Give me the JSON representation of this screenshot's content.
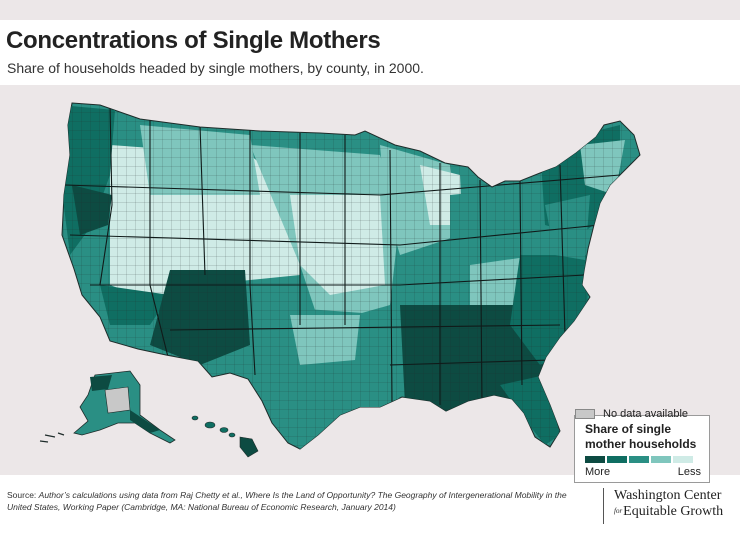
{
  "header": {
    "title": "Concentrations of Single Mothers",
    "subtitle": "Share of households headed by single mothers, by county, in 2000."
  },
  "map": {
    "subject": "United States counties choropleth",
    "colors": {
      "background": "#ece7e8",
      "ocean": "#ece7e8",
      "scale_more_to_less": [
        "#0d4b42",
        "#0f6e62",
        "#2a8f84",
        "#7fc6bd",
        "#cfebe6"
      ],
      "no_data": "#c8c8c8",
      "borders": "#1e2c2a"
    }
  },
  "legend": {
    "title": "Share of single mother households",
    "more_label": "More",
    "less_label": "Less",
    "no_data_label": "No data available"
  },
  "footer": {
    "source_prefix": "Source: ",
    "source_text": "Author’s calculations using data from Raj Chetty et al., Where Is the Land of Opportunity? The Geography of Intergenerational Mobility in the United States, Working Paper (Cambridge, MA: National Bureau of Economic Research, January 2014)",
    "brand_line1": "Washington Center",
    "brand_for": "for",
    "brand_line2": "Equitable Growth"
  }
}
